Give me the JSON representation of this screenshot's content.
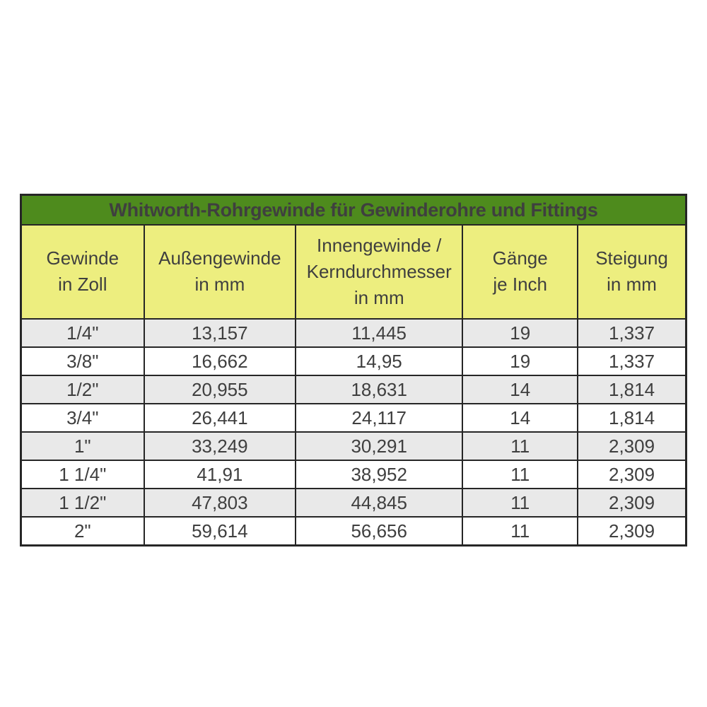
{
  "table": {
    "title": "Whitworth-Rohrgewinde für Gewinderohre und Fittings",
    "columns": [
      {
        "id": "gewinde-in-zoll",
        "lines": [
          "Gewinde",
          "in Zoll"
        ]
      },
      {
        "id": "aussengewinde-in-mm",
        "lines": [
          "Außengewinde",
          "in mm"
        ]
      },
      {
        "id": "innengewinde-kerndurchmesser-in-mm",
        "lines": [
          "Innengewinde /",
          "Kerndurchmesser",
          "in mm"
        ]
      },
      {
        "id": "gaenge-je-inch",
        "lines": [
          "Gänge",
          "je Inch"
        ]
      },
      {
        "id": "steigung-in-mm",
        "lines": [
          "Steigung",
          "in mm"
        ]
      }
    ],
    "column_widths_pct": [
      18.5,
      22.8,
      25.1,
      17.3,
      16.3
    ],
    "rows": [
      [
        "1/4\"",
        "13,157",
        "11,445",
        "19",
        "1,337"
      ],
      [
        "3/8\"",
        "16,662",
        "14,95",
        "19",
        "1,337"
      ],
      [
        "1/2\"",
        "20,955",
        "18,631",
        "14",
        "1,814"
      ],
      [
        "3/4\"",
        "26,441",
        "24,117",
        "14",
        "1,814"
      ],
      [
        "1\"",
        "33,249",
        "30,291",
        "11",
        "2,309"
      ],
      [
        "1 1/4\"",
        "41,91",
        "38,952",
        "11",
        "2,309"
      ],
      [
        "1 1/2\"",
        "47,803",
        "44,845",
        "11",
        "2,309"
      ],
      [
        "2\"",
        "59,614",
        "56,656",
        "11",
        "2,309"
      ]
    ],
    "colors": {
      "title_bg": "#4e8b1d",
      "title_text": "#e9f5dc",
      "header_bg": "#edee7f",
      "row_stripe": "#e9e9e9",
      "row_plain": "#ffffff",
      "border": "#262626",
      "cell_text": "#3f3f3f"
    }
  }
}
